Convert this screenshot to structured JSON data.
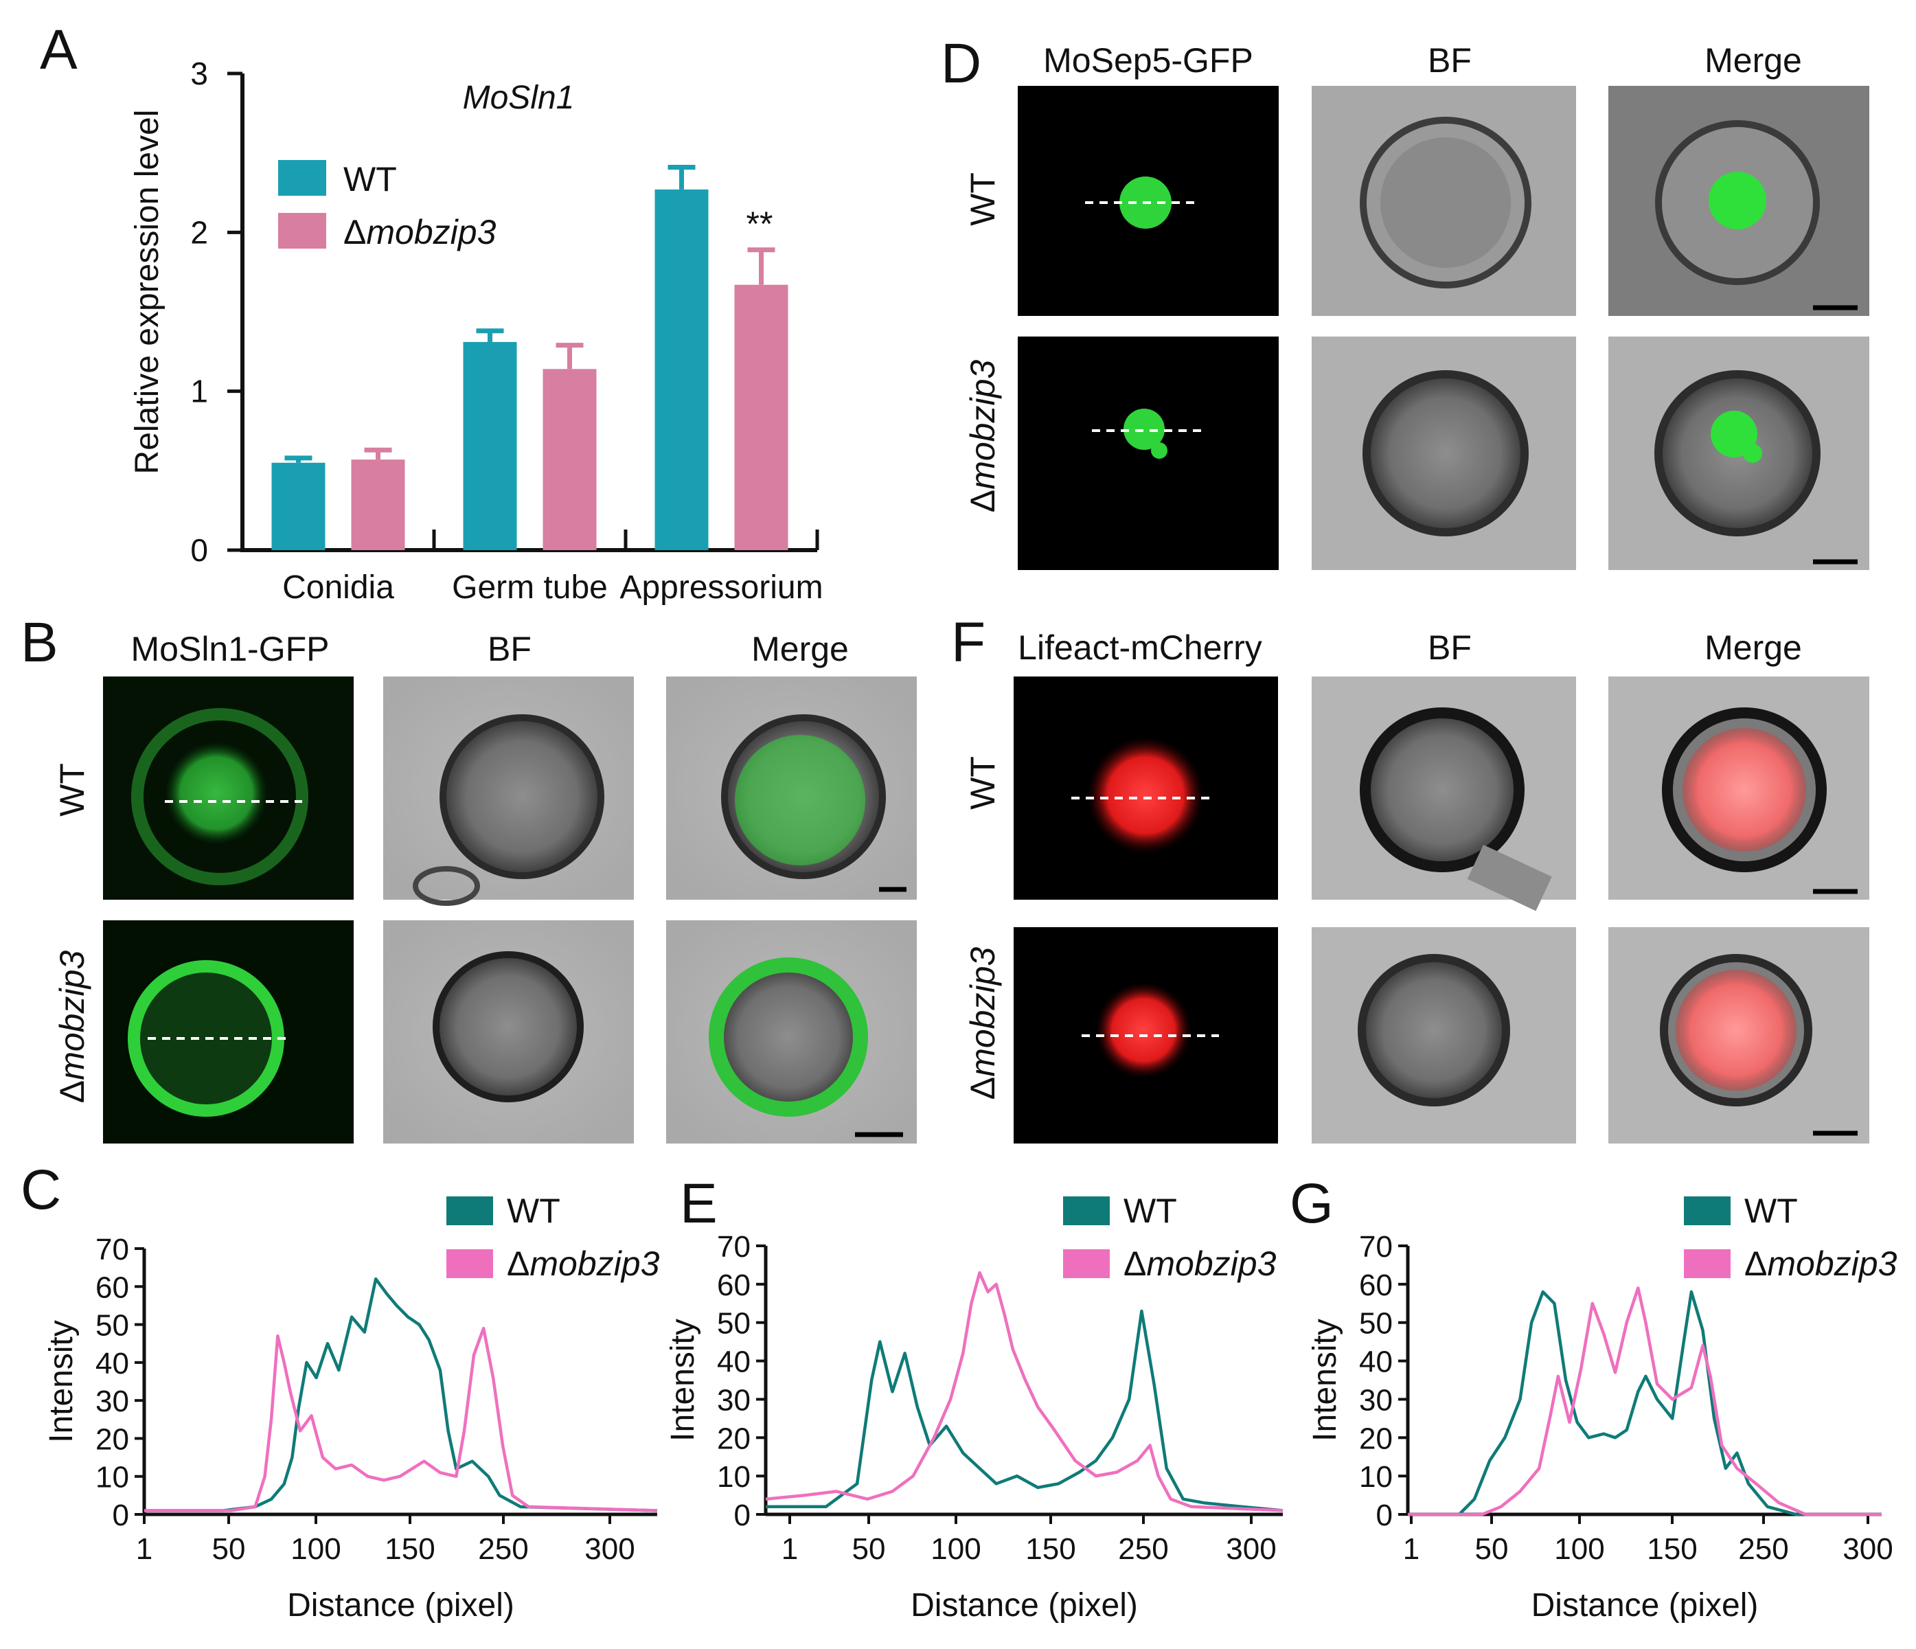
{
  "panel_letters": {
    "A": "A",
    "B": "B",
    "C": "C",
    "D": "D",
    "E": "E",
    "F": "F",
    "G": "G"
  },
  "micro": {
    "B": {
      "col1": "MoSln1-GFP",
      "col2": "BF",
      "col3": "Merge",
      "row1": "WT",
      "row2": "Δmobzip3"
    },
    "D": {
      "col1": "MoSep5-GFP",
      "col2": "BF",
      "col3": "Merge",
      "row1": "WT",
      "row2": "Δmobzip3"
    },
    "F": {
      "col1": "Lifeact-mCherry",
      "col2": "BF",
      "col3": "Merge",
      "row1": "WT",
      "row2": "Δmobzip3"
    }
  },
  "colors": {
    "wt_bar": "#1a9fb2",
    "mut_bar": "#d87ea0",
    "wt_line": "#0f7b78",
    "mut_line": "#ef6fbf",
    "green": "#39e64a",
    "red": "#ff2a2a"
  },
  "chart_data": [
    {
      "id": "A",
      "type": "bar",
      "title": "MoSln1",
      "ylabel": "Relative expression level",
      "xlabel": "",
      "ylim": [
        0,
        3
      ],
      "yticks": [
        "0",
        "1",
        "2",
        "3"
      ],
      "categories": [
        "Conidia",
        "Germ tube",
        "Appressorium"
      ],
      "series": [
        {
          "name": "WT",
          "values": [
            0.55,
            1.31,
            2.27
          ],
          "errors": [
            0.03,
            0.07,
            0.14
          ]
        },
        {
          "name": "Δmobzip3",
          "values": [
            0.57,
            1.14,
            1.67
          ],
          "errors": [
            0.06,
            0.15,
            0.22
          ]
        }
      ],
      "annotation": "**",
      "legend": {
        "position": "top-left",
        "items": [
          "WT",
          "Δmobzip3"
        ]
      }
    },
    {
      "id": "C",
      "type": "line",
      "xlabel": "Distance (pixel)",
      "ylabel": "Intensity",
      "ylim": [
        0,
        70
      ],
      "yticks": [
        "0",
        "10",
        "20",
        "30",
        "40",
        "50",
        "60",
        "70"
      ],
      "xticks": [
        "1",
        "50",
        "100",
        "150",
        "250",
        "300"
      ],
      "legend": {
        "position": "top-right",
        "items": [
          "WT",
          "Δmobzip3"
        ]
      },
      "series": [
        {
          "name": "WT",
          "points": [
            [
              1,
              1
            ],
            [
              50,
              1
            ],
            [
              70,
              2
            ],
            [
              80,
              4
            ],
            [
              88,
              8
            ],
            [
              93,
              15
            ],
            [
              97,
              28
            ],
            [
              102,
              40
            ],
            [
              108,
              36
            ],
            [
              115,
              45
            ],
            [
              122,
              38
            ],
            [
              130,
              52
            ],
            [
              138,
              48
            ],
            [
              145,
              62
            ],
            [
              152,
              58
            ],
            [
              158,
              55
            ],
            [
              165,
              52
            ],
            [
              172,
              50
            ],
            [
              178,
              46
            ],
            [
              185,
              38
            ],
            [
              190,
              22
            ],
            [
              195,
              12
            ],
            [
              205,
              14
            ],
            [
              215,
              10
            ],
            [
              222,
              5
            ],
            [
              235,
              2
            ],
            [
              320,
              1
            ]
          ]
        },
        {
          "name": "Δmobzip3",
          "points": [
            [
              1,
              1
            ],
            [
              55,
              1
            ],
            [
              70,
              2
            ],
            [
              76,
              10
            ],
            [
              80,
              25
            ],
            [
              84,
              47
            ],
            [
              88,
              40
            ],
            [
              92,
              32
            ],
            [
              98,
              22
            ],
            [
              105,
              26
            ],
            [
              112,
              15
            ],
            [
              120,
              12
            ],
            [
              130,
              13
            ],
            [
              140,
              10
            ],
            [
              150,
              9
            ],
            [
              160,
              10
            ],
            [
              175,
              14
            ],
            [
              185,
              11
            ],
            [
              195,
              10
            ],
            [
              200,
              22
            ],
            [
              206,
              42
            ],
            [
              212,
              49
            ],
            [
              218,
              36
            ],
            [
              224,
              18
            ],
            [
              230,
              5
            ],
            [
              240,
              2
            ],
            [
              320,
              1
            ]
          ]
        }
      ]
    },
    {
      "id": "E",
      "type": "line",
      "xlabel": "Distance (pixel)",
      "ylabel": "Intensity",
      "ylim": [
        0,
        70
      ],
      "yticks": [
        "0",
        "10",
        "20",
        "30",
        "40",
        "50",
        "60",
        "70"
      ],
      "xticks": [
        "1",
        "50",
        "100",
        "150",
        "250",
        "300"
      ],
      "legend": {
        "position": "top-right",
        "items": [
          "WT",
          "Δmobzip3"
        ]
      },
      "series": [
        {
          "name": "WT",
          "points": [
            [
              1,
              2
            ],
            [
              30,
              2
            ],
            [
              45,
              8
            ],
            [
              52,
              35
            ],
            [
              56,
              45
            ],
            [
              62,
              32
            ],
            [
              68,
              42
            ],
            [
              74,
              28
            ],
            [
              80,
              18
            ],
            [
              88,
              23
            ],
            [
              96,
              16
            ],
            [
              104,
              12
            ],
            [
              112,
              8
            ],
            [
              122,
              10
            ],
            [
              132,
              7
            ],
            [
              142,
              8
            ],
            [
              152,
              11
            ],
            [
              160,
              14
            ],
            [
              168,
              20
            ],
            [
              176,
              30
            ],
            [
              182,
              53
            ],
            [
              188,
              34
            ],
            [
              194,
              12
            ],
            [
              202,
              4
            ],
            [
              212,
              3
            ],
            [
              230,
              2
            ],
            [
              250,
              1
            ]
          ]
        },
        {
          "name": "Δmobzip3",
          "points": [
            [
              1,
              4
            ],
            [
              20,
              5
            ],
            [
              35,
              6
            ],
            [
              50,
              4
            ],
            [
              62,
              6
            ],
            [
              72,
              10
            ],
            [
              82,
              20
            ],
            [
              90,
              30
            ],
            [
              96,
              42
            ],
            [
              100,
              55
            ],
            [
              104,
              63
            ],
            [
              108,
              58
            ],
            [
              112,
              60
            ],
            [
              116,
              52
            ],
            [
              120,
              43
            ],
            [
              126,
              35
            ],
            [
              132,
              28
            ],
            [
              140,
              22
            ],
            [
              150,
              14
            ],
            [
              160,
              10
            ],
            [
              170,
              11
            ],
            [
              180,
              14
            ],
            [
              186,
              18
            ],
            [
              190,
              10
            ],
            [
              196,
              4
            ],
            [
              206,
              2
            ],
            [
              250,
              1
            ]
          ]
        }
      ]
    },
    {
      "id": "G",
      "type": "line",
      "xlabel": "Distance (pixel)",
      "ylabel": "Intensity",
      "ylim": [
        0,
        70
      ],
      "yticks": [
        "0",
        "10",
        "20",
        "30",
        "40",
        "50",
        "60",
        "70"
      ],
      "xticks": [
        "1",
        "50",
        "100",
        "150",
        "250",
        "300"
      ],
      "legend": {
        "position": "top-right",
        "items": [
          "WT",
          "Δmobzip3"
        ]
      },
      "series": [
        {
          "name": "WT",
          "points": [
            [
              1,
              0
            ],
            [
              28,
              0
            ],
            [
              36,
              4
            ],
            [
              44,
              14
            ],
            [
              52,
              20
            ],
            [
              60,
              30
            ],
            [
              66,
              50
            ],
            [
              72,
              58
            ],
            [
              78,
              55
            ],
            [
              84,
              35
            ],
            [
              90,
              24
            ],
            [
              96,
              20
            ],
            [
              104,
              21
            ],
            [
              110,
              20
            ],
            [
              116,
              22
            ],
            [
              122,
              32
            ],
            [
              126,
              36
            ],
            [
              132,
              30
            ],
            [
              140,
              25
            ],
            [
              146,
              45
            ],
            [
              150,
              58
            ],
            [
              156,
              48
            ],
            [
              162,
              25
            ],
            [
              168,
              12
            ],
            [
              174,
              16
            ],
            [
              180,
              8
            ],
            [
              190,
              2
            ],
            [
              205,
              0
            ],
            [
              250,
              0
            ]
          ]
        },
        {
          "name": "Δmobzip3",
          "points": [
            [
              1,
              0
            ],
            [
              40,
              0
            ],
            [
              50,
              2
            ],
            [
              60,
              6
            ],
            [
              70,
              12
            ],
            [
              76,
              26
            ],
            [
              80,
              36
            ],
            [
              86,
              24
            ],
            [
              92,
              38
            ],
            [
              98,
              55
            ],
            [
              104,
              47
            ],
            [
              110,
              37
            ],
            [
              116,
              50
            ],
            [
              122,
              59
            ],
            [
              126,
              50
            ],
            [
              132,
              34
            ],
            [
              140,
              30
            ],
            [
              150,
              33
            ],
            [
              156,
              44
            ],
            [
              160,
              36
            ],
            [
              166,
              18
            ],
            [
              174,
              12
            ],
            [
              184,
              8
            ],
            [
              196,
              3
            ],
            [
              210,
              0
            ],
            [
              250,
              0
            ]
          ]
        }
      ]
    }
  ]
}
